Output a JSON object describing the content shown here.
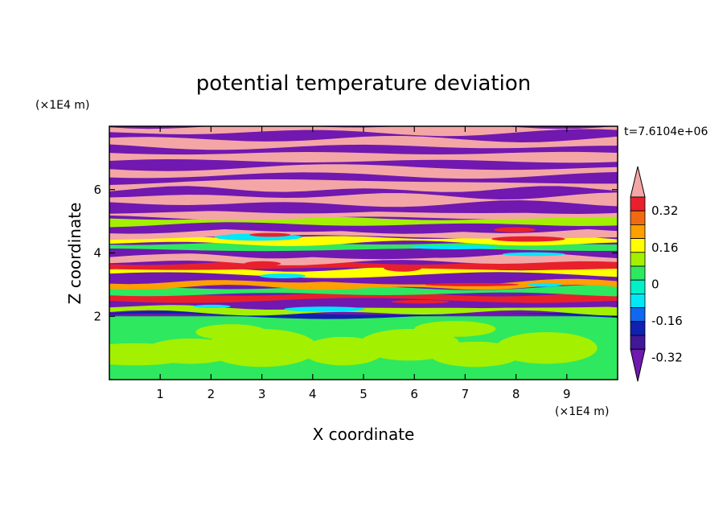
{
  "chart_data": {
    "type": "heatmap",
    "title": "potential temperature deviation",
    "xlabel": "X coordinate",
    "ylabel": "Z coordinate",
    "x_unit_label": "(×1E4 m)",
    "y_unit_label": "(×1E4 m)",
    "time_label": "t=7.6104e+06",
    "xlim": [
      0,
      10
    ],
    "ylim": [
      0,
      8
    ],
    "xticks": [
      "1",
      "2",
      "3",
      "4",
      "5",
      "6",
      "7",
      "8",
      "9"
    ],
    "yticks": [
      "2",
      "4",
      "6"
    ],
    "colorbar": {
      "levels": [
        -0.48,
        -0.4,
        -0.32,
        -0.24,
        -0.16,
        -0.08,
        0,
        0.08,
        0.16,
        0.24,
        0.32,
        0.4
      ],
      "labels": [
        "0.32",
        "0.16",
        "0",
        "-0.16",
        "-0.32"
      ],
      "colors_top_to_bottom": [
        "#f4a6a6",
        "#e8202c",
        "#f06a12",
        "#ff9f00",
        "#ffff00",
        "#a3f000",
        "#2ee860",
        "#00f0c8",
        "#00e8f8",
        "#1068f0",
        "#1020b0",
        "#401898",
        "#7018b0"
      ]
    },
    "palette": {
      "pink": "#f4a6a6",
      "purple": "#7018b0",
      "dark_blue": "#1020b0",
      "green": "#2ee860",
      "yellow_green": "#a3f000",
      "yellow": "#ffff00",
      "orange": "#ff9f00",
      "red": "#e8202c",
      "cyan": "#00e8f8"
    }
  }
}
